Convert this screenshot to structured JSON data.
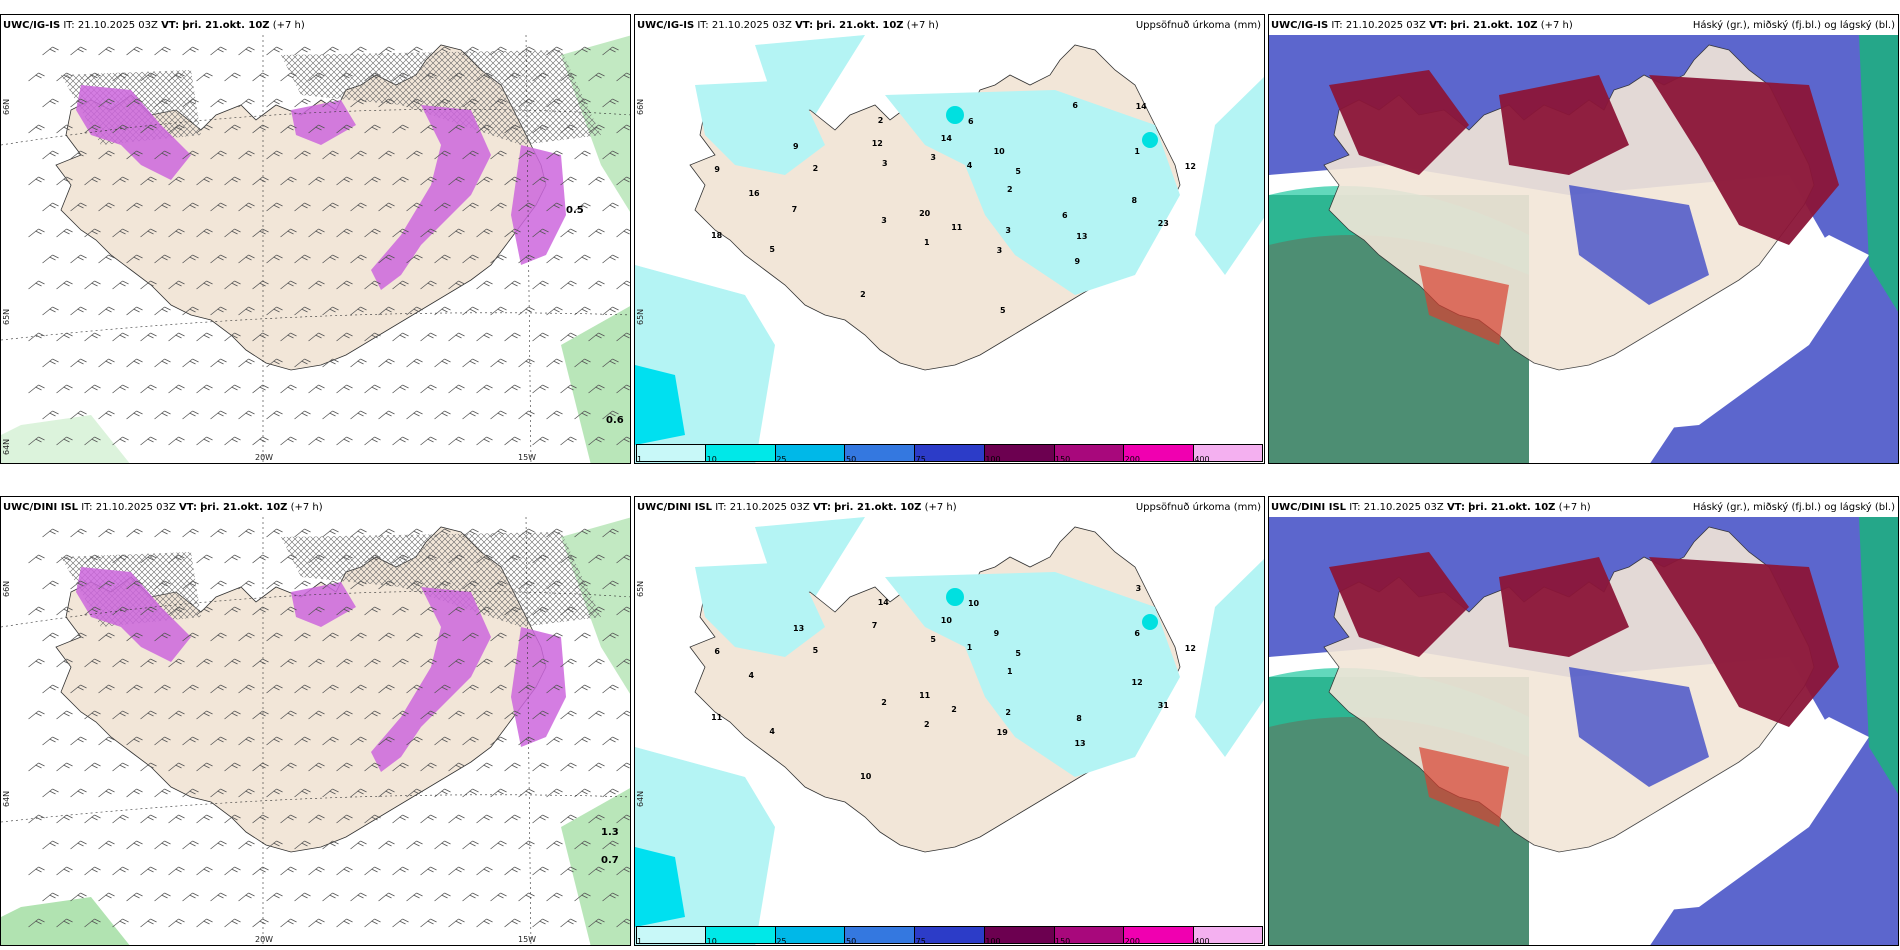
{
  "panels": [
    {
      "model": "UWC/IG-IS",
      "it_label": "IT: 21.10.2025 03Z",
      "vt_label": "VT:",
      "vt_value": "þri. 21.okt. 10Z",
      "lead": "(+7 h)",
      "right_title": "",
      "lon_labels": [
        "20W",
        "15W"
      ],
      "lat_labels": [
        "66N",
        "65N",
        "64N"
      ],
      "max_values": [
        "0.5",
        "0.6"
      ]
    },
    {
      "model": "UWC/IG-IS",
      "it_label": "IT: 21.10.2025 03Z",
      "vt_label": "VT:",
      "vt_value": "þri. 21.okt. 10Z",
      "lead": "(+7 h)",
      "right_title": "Uppsöfnuð úrkoma (mm)",
      "lon_labels": [],
      "lat_labels": [
        "66N",
        "65N"
      ],
      "values": [
        "2",
        "3",
        "6",
        "9",
        "9",
        "5",
        "1",
        "2",
        "23",
        "18",
        "10",
        "3",
        "9",
        "12",
        "20",
        "14",
        "13",
        "16",
        "14",
        "11",
        "12",
        "8",
        "5",
        "4",
        "3",
        "2",
        "1",
        "2",
        "3",
        "6",
        "7",
        "6",
        "5",
        "3"
      ]
    },
    {
      "model": "UWC/IG-IS",
      "it_label": "IT: 21.10.2025 03Z",
      "vt_label": "VT:",
      "vt_value": "þri. 21.okt. 10Z",
      "lead": "(+7 h)",
      "right_title": "Háský (gr.), miðský (fj.bl.) og lágský (bl.)",
      "lon_labels": [],
      "lat_labels": []
    },
    {
      "model": "UWC/DINI ISL",
      "it_label": "IT: 21.10.2025 03Z",
      "vt_label": "VT:",
      "vt_value": "þri. 21.okt. 10Z",
      "lead": "(+7 h)",
      "right_title": "",
      "lon_labels": [
        "20W",
        "15W"
      ],
      "lat_labels": [
        "66N",
        "64N"
      ],
      "max_values": [
        "1.3",
        "0.7"
      ]
    },
    {
      "model": "UWC/DINI ISL",
      "it_label": "IT: 21.10.2025 03Z",
      "vt_label": "VT:",
      "vt_value": "þri. 21.okt. 10Z",
      "lead": "(+7 h)",
      "right_title": "Uppsöfnuð úrkoma (mm)",
      "lon_labels": [],
      "lat_labels": [
        "65N",
        "64N"
      ],
      "values": [
        "1",
        "2",
        "10",
        "13",
        "6",
        "5",
        "2",
        "14",
        "31",
        "11",
        "9",
        "19",
        "13",
        "12",
        "11",
        "10",
        "8",
        "4",
        "3",
        "2",
        "7",
        "12",
        "4",
        "1",
        "2",
        "5",
        "6",
        "10",
        "5"
      ]
    },
    {
      "model": "UWC/DINI ISL",
      "it_label": "IT: 21.10.2025 03Z",
      "vt_label": "VT:",
      "vt_value": "þri. 21.okt. 10Z",
      "lead": "(+7 h)",
      "right_title": "Háský (gr.), miðský (fj.bl.) og lágský (bl.)",
      "lon_labels": [],
      "lat_labels": []
    }
  ],
  "colorbar": {
    "labels": [
      "1",
      "10",
      "25",
      "50",
      "75",
      "100",
      "150",
      "200",
      "400"
    ],
    "colors": [
      "#c8f8f8",
      "#00e8e8",
      "#00b8e8",
      "#3478e0",
      "#2c3cc8",
      "#6c0050",
      "#a8087c",
      "#f000b0",
      "#f4b0f0"
    ]
  },
  "colors": {
    "land": "#f2e6d8",
    "precip_light": "#b4f4f4",
    "snow": "#cc66dd",
    "cloud_high": "#8b1538",
    "cloud_mid": "#4a55c8",
    "cloud_low": "#2e7a5a",
    "green": "#a8e0a8"
  }
}
